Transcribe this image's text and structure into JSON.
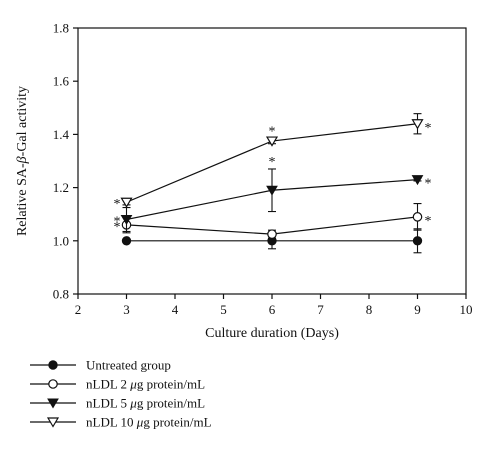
{
  "chart_data": {
    "type": "line",
    "xlabel_parts": [
      "Culture duration (Days)"
    ],
    "ylabel_parts": [
      "Relative SA-",
      "β",
      "-Gal activity"
    ],
    "xlim": [
      2,
      10
    ],
    "ylim": [
      0.8,
      1.8
    ],
    "xticks": [
      2,
      3,
      4,
      5,
      6,
      7,
      8,
      9,
      10
    ],
    "yticks": [
      0.8,
      1.0,
      1.2,
      1.4,
      1.6,
      1.8
    ],
    "ytick_labels": [
      "0.8",
      "1.0",
      "1.2",
      "1.4",
      "1.6",
      "1.8"
    ],
    "grid": false,
    "legend_position": "bottom-left, below plot",
    "x": [
      3,
      6,
      9
    ],
    "series": [
      {
        "label_parts": [
          "Untreated group"
        ],
        "marker": "filled-circle",
        "values": [
          1.0,
          1.0,
          1.0
        ],
        "errors": [
          0.005,
          0.03,
          0.045
        ],
        "stars": [
          "",
          "",
          ""
        ]
      },
      {
        "label_parts": [
          "nLDL 2 ",
          "μ",
          "g protein/mL"
        ],
        "marker": "open-circle",
        "values": [
          1.06,
          1.025,
          1.09
        ],
        "errors": [
          0.03,
          0.015,
          0.05
        ],
        "stars": [
          "*",
          "",
          "*"
        ]
      },
      {
        "label_parts": [
          "nLDL 5 ",
          "μ",
          "g protein/mL"
        ],
        "marker": "filled-triangle-down",
        "values": [
          1.08,
          1.19,
          1.23
        ],
        "errors": [
          0.045,
          0.08,
          0.005
        ],
        "stars": [
          "*",
          "*",
          "*"
        ]
      },
      {
        "label_parts": [
          "nLDL 10 ",
          "μ",
          "g protein/mL"
        ],
        "marker": "open-triangle-down",
        "values": [
          1.145,
          1.375,
          1.44
        ],
        "errors": [
          0.01,
          0.01,
          0.038
        ],
        "stars": [
          "*",
          "*",
          "*"
        ]
      }
    ]
  }
}
